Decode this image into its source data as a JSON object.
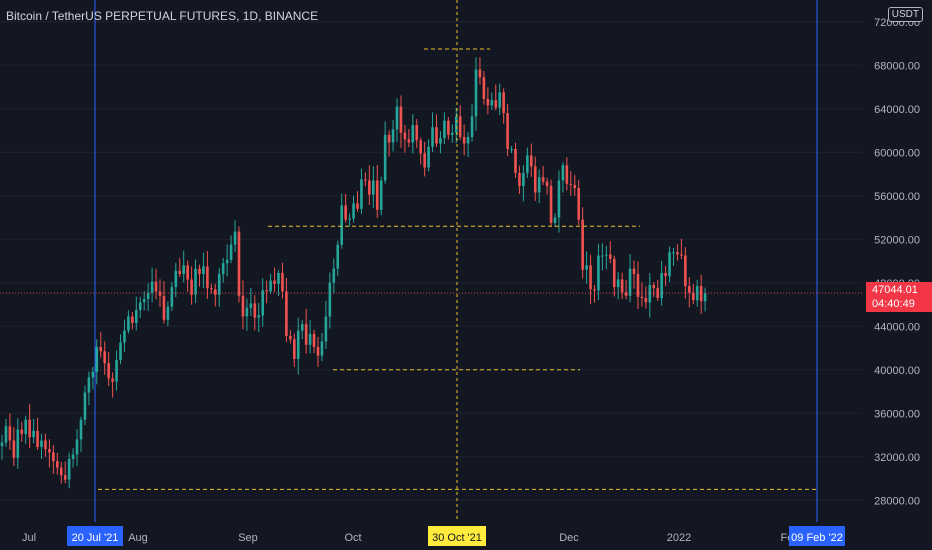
{
  "chart_title": "Bitcoin / TetherUS PERPETUAL FUTURES, 1D, BINANCE",
  "currency_label": "USDT",
  "last_price_tag": {
    "price": "47044.01",
    "countdown": "04:40:49"
  },
  "colors": {
    "background": "#131722",
    "up": "#26a69a",
    "down": "#ef5350",
    "level": "#e6c229",
    "marker": "#2962ff"
  },
  "chart_data": {
    "type": "candlestick",
    "title": "Bitcoin / TetherUS PERPETUAL FUTURES, 1D, BINANCE",
    "x_axis": {
      "ticks": [
        "Jul",
        "Aug",
        "Sep",
        "Oct",
        "Dec",
        "2022",
        "Feb"
      ],
      "highlighted": [
        {
          "label": "20 Jul '21",
          "style": "blue"
        },
        {
          "label": "30 Oct '21",
          "style": "yellow"
        },
        {
          "label": "09 Feb '22",
          "style": "blue"
        }
      ]
    },
    "y_axis": {
      "ticks": [
        "28000.00",
        "32000.00",
        "36000.00",
        "40000.00",
        "44000.00",
        "48000.00",
        "52000.00",
        "56000.00",
        "60000.00",
        "64000.00",
        "68000.00",
        "72000.00"
      ],
      "range": [
        26000,
        74000
      ]
    },
    "horizontal_levels": [
      69500,
      53200,
      40000,
      29000
    ],
    "vertical_markers": [
      "20 Jul '21",
      "30 Oct '21",
      "09 Feb '22"
    ],
    "last_price": 47044.01,
    "closes": [
      33300,
      34800,
      33500,
      31900,
      34500,
      34100,
      35400,
      33800,
      34400,
      32900,
      33500,
      32700,
      32400,
      31600,
      31000,
      30300,
      29900,
      31800,
      32200,
      33600,
      35400,
      37900,
      39300,
      39800,
      42100,
      41700,
      40600,
      39200,
      38900,
      40900,
      42500,
      43600,
      44900,
      44300,
      45500,
      46200,
      46500,
      47100,
      48100,
      47200,
      46800,
      44600,
      45800,
      47600,
      49100,
      48800,
      49600,
      48300,
      46900,
      49300,
      48800,
      49500,
      47500,
      47400,
      46900,
      48800,
      49800,
      50100,
      51500,
      52700,
      46800,
      44900,
      45700,
      46100,
      44800,
      45000,
      47300,
      47200,
      48200,
      47900,
      48900,
      47200,
      43100,
      42800,
      41000,
      43600,
      44200,
      42300,
      43300,
      42100,
      41300,
      42600,
      44900,
      48000,
      49300,
      51500,
      55100,
      53800,
      53900,
      55300,
      54800,
      57500,
      57400,
      56100,
      57400,
      54700,
      57400,
      61600,
      60900,
      62100,
      64200,
      61800,
      61200,
      60900,
      62500,
      61100,
      59900,
      58600,
      60500,
      62300,
      60800,
      61300,
      62900,
      61600,
      61800,
      63300,
      61400,
      60800,
      61400,
      63300,
      67600,
      66900,
      64900,
      64300,
      64800,
      64100,
      65500,
      63600,
      60300,
      60300,
      58100,
      56900,
      58100,
      59700,
      58700,
      56300,
      57700,
      57300,
      56900,
      53500,
      54000,
      57400,
      58800,
      57100,
      57000,
      56700,
      53800,
      49200,
      49600,
      47400,
      47300,
      50500,
      50500,
      50600,
      50200,
      47600,
      48300,
      47100,
      46800,
      49300,
      48800,
      46700,
      46600,
      46200,
      47800,
      47500,
      46600,
      48900,
      48600,
      50800,
      50800,
      50600,
      50500,
      47700,
      47100,
      46400,
      47700,
      46300,
      47044
    ]
  }
}
